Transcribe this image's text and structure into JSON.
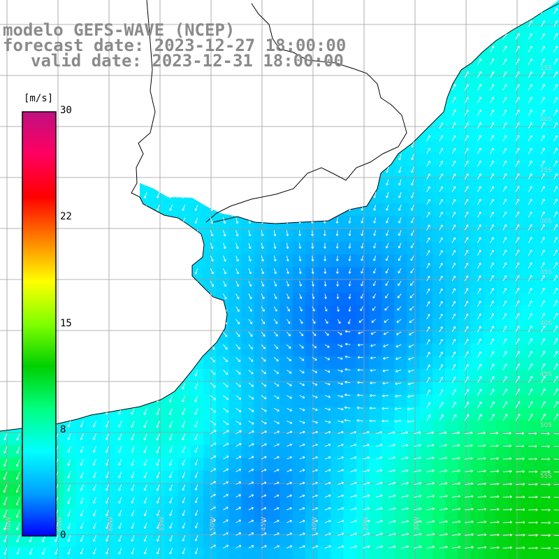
{
  "header": {
    "line1": "modelo GEFS-WAVE (NCEP)",
    "line2": "forecast date: 2023-12-27 18:00:00",
    "line3": "valid date: 2023-12-31 18:00:00"
  },
  "colorbar": {
    "unit": "[m/s]",
    "ticks": [
      "30",
      "22",
      "15",
      "8",
      "0"
    ],
    "stops": [
      "#0000ff",
      "#00a0ff",
      "#00ffff",
      "#00ff80",
      "#00d000",
      "#80ff00",
      "#ffff00",
      "#ff8000",
      "#ff0000",
      "#ff0060",
      "#c01080"
    ]
  },
  "map": {
    "lat_labels": [
      "15S",
      "20S",
      "25S",
      "30S",
      "35S",
      "40S",
      "45S",
      "50S",
      "55S"
    ],
    "lon_labels": [
      "70W",
      "65W",
      "60W",
      "55W",
      "50W",
      "45W",
      "40W",
      "35W",
      "30W"
    ]
  },
  "icons": {
    "arrow": "wind-arrow-icon"
  }
}
